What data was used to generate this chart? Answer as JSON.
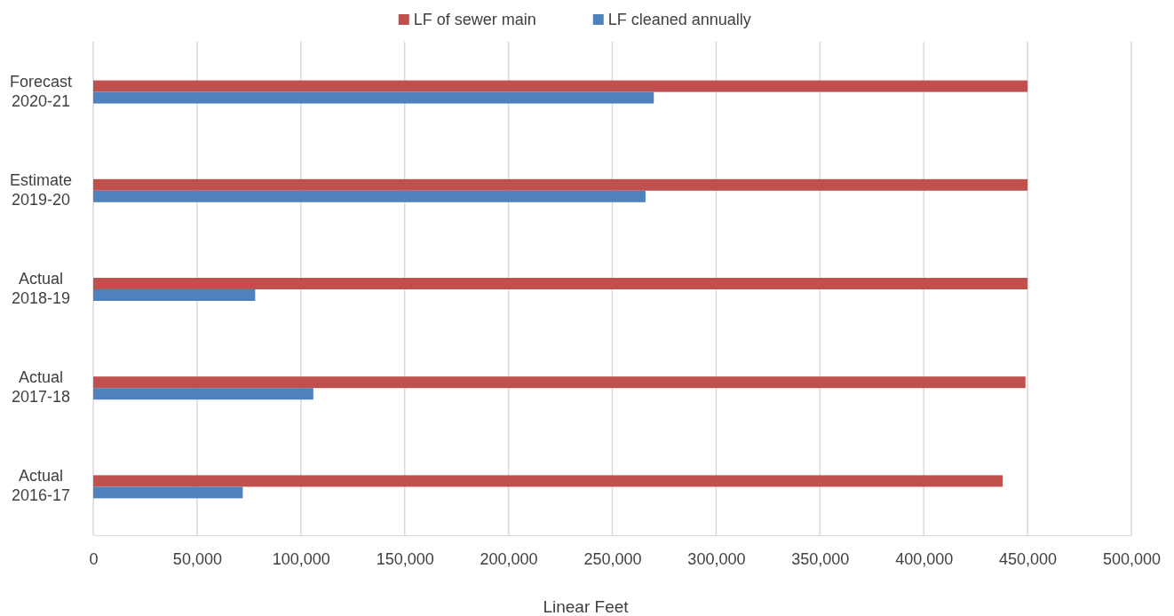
{
  "chart_data": {
    "type": "bar",
    "orientation": "horizontal",
    "xlabel": "Linear Feet",
    "categories": [
      "Forecast 2020-21",
      "Estimate 2019-20",
      "Actual 2018-19",
      "Actual 2017-18",
      "Actual 2016-17"
    ],
    "series": [
      {
        "name": "LF of sewer main",
        "color": "#c0504d",
        "values": [
          450000,
          450000,
          450000,
          449000,
          438000
        ]
      },
      {
        "name": "LF cleaned annually",
        "color": "#4f81bd",
        "values": [
          270000,
          266000,
          78000,
          106000,
          72000
        ]
      }
    ],
    "xlim": [
      0,
      500000
    ],
    "xticks": [
      0,
      {
        "value": 50000,
        "label": "50,000"
      },
      {
        "value": 100000,
        "label": "100,000"
      },
      {
        "value": 150000,
        "label": "150,000"
      },
      {
        "value": 200000,
        "label": "200,000"
      },
      {
        "value": 250000,
        "label": "250,000"
      },
      {
        "value": 300000,
        "label": "300,000"
      },
      {
        "value": 350000,
        "label": "350,000"
      },
      {
        "value": 400000,
        "label": "400,000"
      },
      {
        "value": 450000,
        "label": "450,000"
      },
      {
        "value": 500000,
        "label": "500,000"
      }
    ],
    "grid": "x",
    "legend": "top"
  }
}
